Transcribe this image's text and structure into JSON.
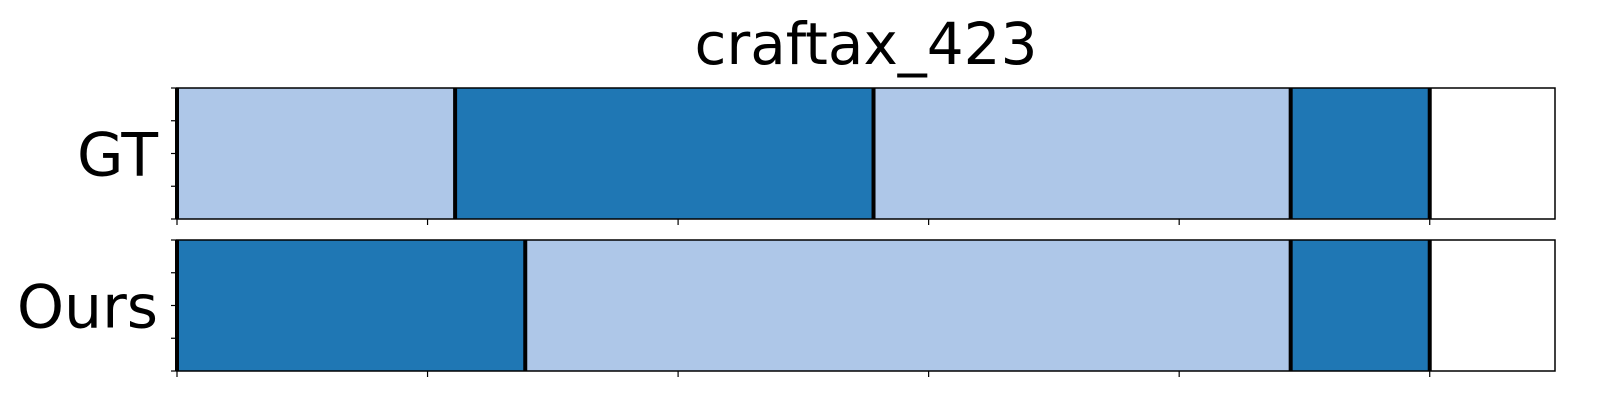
{
  "chart_data": {
    "type": "segmentation-timeline",
    "title": "craftax_423",
    "xlim": [
      0,
      1.1
    ],
    "x_ticks": [
      0.0,
      0.2,
      0.4,
      0.6,
      0.8,
      1.0
    ],
    "colors": {
      "light": "#aec7e8",
      "dark": "#1f77b4"
    },
    "rows": [
      {
        "label": "GT",
        "segments": [
          {
            "start": 0.0,
            "end": 0.222,
            "color": "light"
          },
          {
            "start": 0.222,
            "end": 0.556,
            "color": "dark"
          },
          {
            "start": 0.556,
            "end": 0.889,
            "color": "light"
          },
          {
            "start": 0.889,
            "end": 1.0,
            "color": "dark"
          }
        ]
      },
      {
        "label": "Ours",
        "segments": [
          {
            "start": 0.0,
            "end": 0.278,
            "color": "dark"
          },
          {
            "start": 0.278,
            "end": 0.889,
            "color": "light"
          },
          {
            "start": 0.889,
            "end": 1.0,
            "color": "dark"
          }
        ]
      }
    ]
  }
}
